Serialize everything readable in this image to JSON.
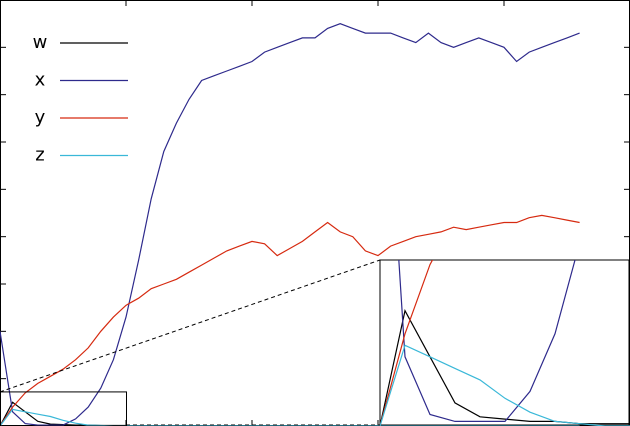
{
  "chart_data": {
    "type": "line",
    "x": [
      0,
      2,
      4,
      6,
      8,
      10,
      12,
      14,
      16,
      18,
      20,
      22,
      24,
      26,
      28,
      30,
      32,
      34,
      36,
      38,
      40,
      42,
      44,
      46,
      48,
      50,
      52,
      54,
      56,
      58,
      60,
      62,
      64,
      66,
      68,
      70,
      72,
      74,
      76,
      78,
      80,
      82,
      84,
      86,
      88,
      90,
      92
    ],
    "xlim": [
      0,
      100
    ],
    "xticks": [
      20,
      40,
      60,
      80
    ],
    "ylim": [
      0,
      9
    ],
    "yticks": [
      1,
      2,
      3,
      4,
      5,
      6,
      7,
      8
    ],
    "series": [
      {
        "name": "w",
        "color": "#000000",
        "values": [
          0,
          0.5,
          0.3,
          0.1,
          0.04,
          0.03,
          0.02,
          0.02,
          0.01,
          0.01,
          0.01,
          0,
          0,
          0,
          0,
          0,
          0,
          0,
          0,
          0,
          0,
          0,
          0,
          0,
          0,
          0,
          0,
          0,
          0,
          0,
          0,
          0,
          0,
          0,
          0,
          0,
          0,
          0,
          0,
          0,
          0,
          0,
          0,
          0,
          0,
          0,
          0
        ]
      },
      {
        "name": "x",
        "color": "#2e2a8c",
        "values": [
          2.0,
          0.3,
          0.05,
          0.02,
          0.02,
          0.02,
          0.15,
          0.4,
          0.8,
          1.4,
          2.3,
          3.5,
          4.8,
          5.8,
          6.4,
          6.9,
          7.3,
          7.4,
          7.5,
          7.6,
          7.7,
          7.9,
          8.0,
          8.1,
          8.2,
          8.2,
          8.4,
          8.5,
          8.4,
          8.3,
          8.3,
          8.3,
          8.2,
          8.1,
          8.3,
          8.1,
          8.0,
          8.1,
          8.2,
          8.1,
          8.0,
          7.7,
          7.9,
          8.0,
          8.1,
          8.2,
          8.3
        ]
      },
      {
        "name": "y",
        "color": "#d62a10",
        "values": [
          0,
          0.4,
          0.7,
          0.9,
          1.05,
          1.2,
          1.4,
          1.65,
          2.0,
          2.3,
          2.55,
          2.7,
          2.9,
          3.0,
          3.1,
          3.25,
          3.4,
          3.55,
          3.7,
          3.8,
          3.9,
          3.85,
          3.6,
          3.75,
          3.9,
          4.1,
          4.3,
          4.1,
          4.0,
          3.7,
          3.6,
          3.8,
          3.9,
          4.0,
          4.05,
          4.1,
          4.2,
          4.15,
          4.2,
          4.25,
          4.3,
          4.3,
          4.4,
          4.45,
          4.4,
          4.35,
          4.3
        ]
      },
      {
        "name": "z",
        "color": "#3ab8d8",
        "values": [
          0,
          0.35,
          0.3,
          0.25,
          0.2,
          0.12,
          0.06,
          0.02,
          0.01,
          0,
          0,
          0,
          0,
          0,
          0,
          0,
          0,
          0,
          0,
          0,
          0,
          0,
          0,
          0,
          0,
          0,
          0,
          0,
          0,
          0,
          0,
          0,
          0,
          0,
          0,
          0,
          0,
          0,
          0,
          0,
          0,
          0,
          0,
          0,
          0,
          0,
          0
        ]
      }
    ],
    "inset": {
      "xlim": [
        0,
        20
      ],
      "ylim": [
        0,
        0.72
      ]
    }
  }
}
